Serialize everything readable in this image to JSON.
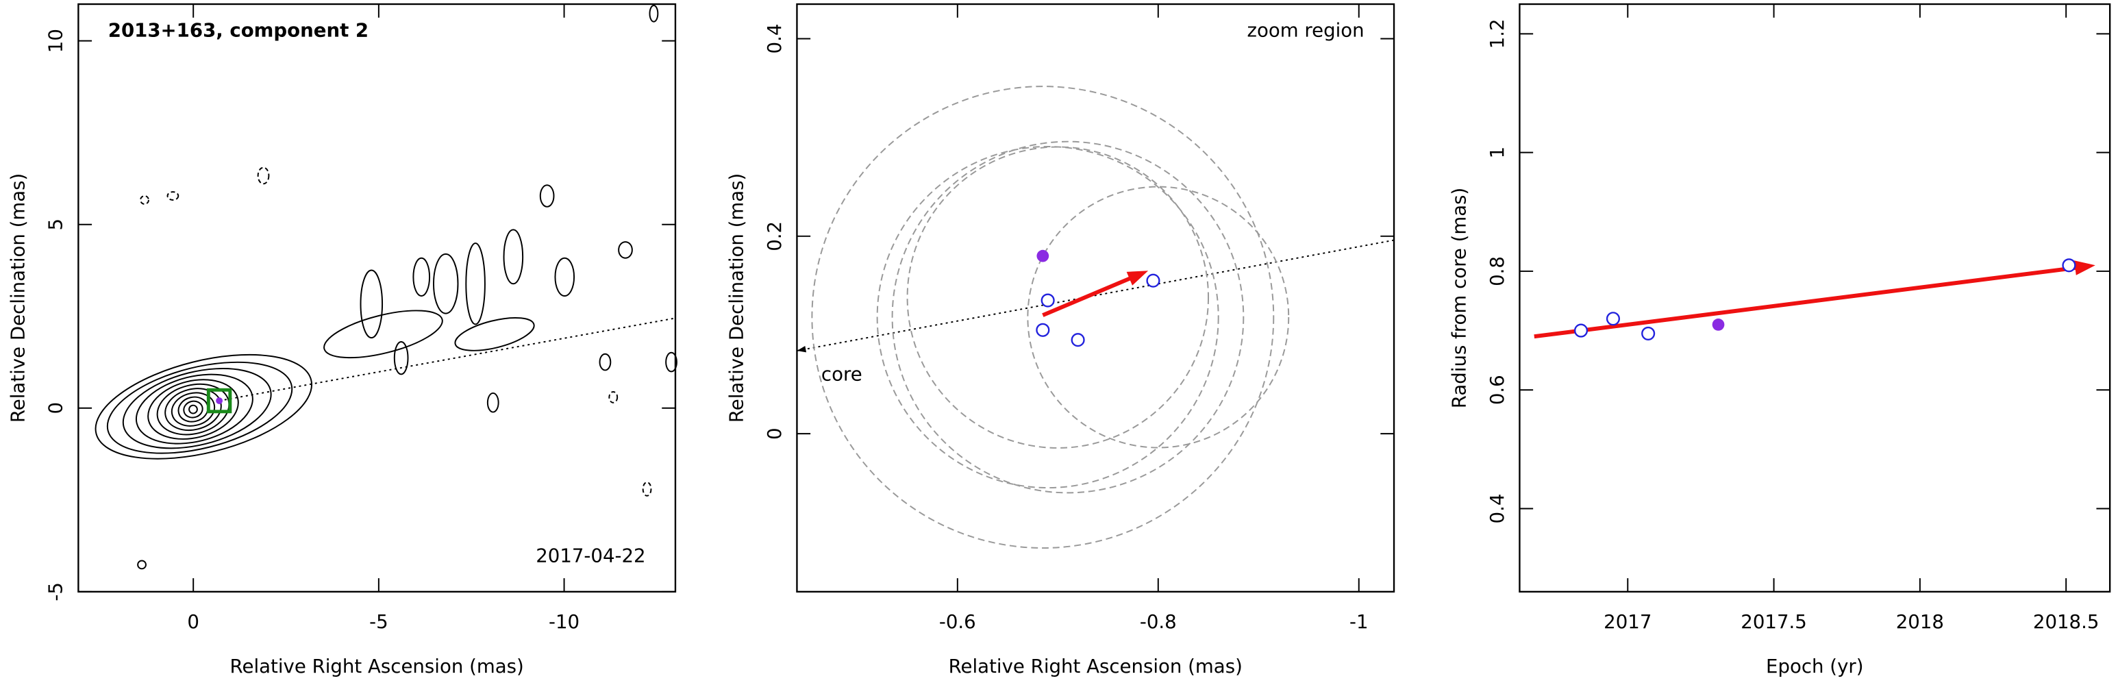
{
  "chart_data": [
    {
      "type": "contour",
      "title": "2013+163, component 2",
      "annotation": "2017-04-22",
      "x_label": "Relative Right Ascension (mas)",
      "y_label": "Relative Declination (mas)",
      "xlim": [
        3.1,
        -13
      ],
      "ylim": [
        -5,
        11
      ],
      "xticks": [
        0,
        -5,
        -10
      ],
      "yticks": [
        -5,
        0,
        5,
        10
      ],
      "component": {
        "x": -0.7,
        "y": 0.2,
        "color": "#1a8a1a"
      },
      "trajectory": {
        "x": [
          -0.7,
          -13
        ],
        "y": [
          0.2,
          2.45
        ]
      }
    },
    {
      "type": "zoom",
      "annotation": "zoom region",
      "core_label": "core",
      "x_label": "Relative Right Ascension (mas)",
      "y_label": "Relative Declination (mas)",
      "xlim": [
        -0.44,
        -1.035
      ],
      "ylim": [
        -0.16,
        0.435
      ],
      "xticks": [
        -0.6,
        -0.8,
        -1
      ],
      "yticks": [
        0,
        0.2,
        0.4
      ],
      "circles": {
        "x": [
          -0.685,
          -0.69,
          -0.71,
          -0.7,
          -0.8
        ],
        "y": [
          0.118,
          0.118,
          0.118,
          0.138,
          0.118
        ],
        "r": [
          0.23,
          0.17,
          0.175,
          0.15,
          0.13
        ]
      },
      "open_points": {
        "x": [
          -0.69,
          -0.685,
          -0.72,
          -0.795
        ],
        "y": [
          0.135,
          0.105,
          0.095,
          0.155
        ],
        "color": "#2222dd"
      },
      "filled_point": {
        "x": -0.685,
        "y": 0.18,
        "color": "#8a2be2"
      },
      "arrow": {
        "x": [
          -0.685,
          -0.79
        ],
        "y": [
          0.12,
          0.165
        ],
        "color": "#ee1111"
      },
      "trajectory": {
        "x": [
          -1.035,
          -0.44
        ],
        "y": [
          0.196,
          0.084
        ]
      }
    },
    {
      "type": "scatter",
      "x_label": "Epoch (yr)",
      "y_label": "Radius from core (mas)",
      "xlim": [
        2016.63,
        2018.65
      ],
      "ylim": [
        0.26,
        1.25
      ],
      "xticks": [
        2017,
        2017.5,
        2018,
        2018.5
      ],
      "yticks": [
        0.4,
        0.6,
        0.8,
        1,
        1.2
      ],
      "open_points": {
        "x": [
          2016.84,
          2016.95,
          2017.07,
          2018.51
        ],
        "y": [
          0.7,
          0.72,
          0.695,
          0.81
        ],
        "color": "#2222dd"
      },
      "filled_point": {
        "x": 2017.31,
        "y": 0.71,
        "color": "#8a2be2"
      },
      "arrow": {
        "x": [
          2016.68,
          2018.6
        ],
        "y": [
          0.69,
          0.81
        ],
        "color": "#ee1111"
      }
    }
  ]
}
